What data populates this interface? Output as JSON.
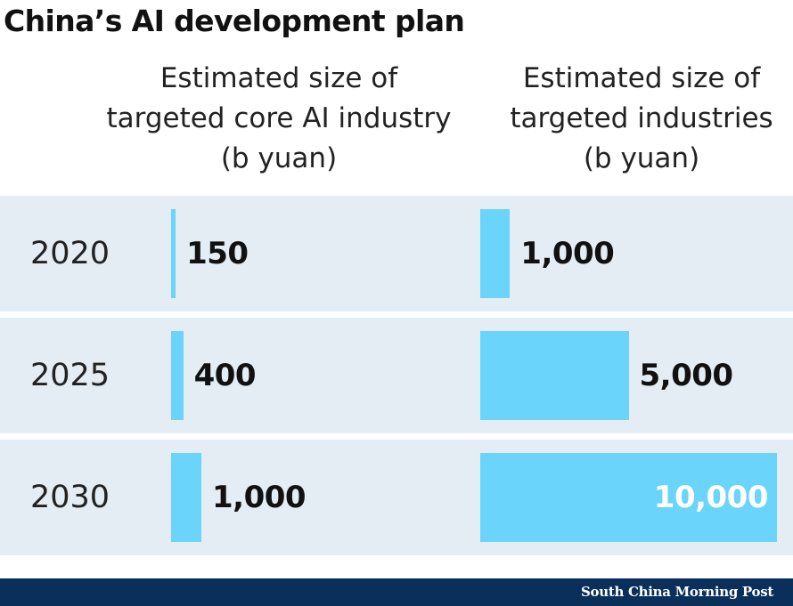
{
  "title": "China’s AI development plan",
  "colors": {
    "bar": "#6ad4fb",
    "row_bg": "#e3edf3",
    "footer_bg": "#0a2f5a"
  },
  "chart_data": {
    "type": "bar",
    "orientation": "horizontal",
    "categories": [
      "2020",
      "2025",
      "2030"
    ],
    "series": [
      {
        "name": "Estimated size of targeted core AI industry (b yuan)",
        "header_lines": [
          "Estimated size of",
          "targeted core AI industry",
          "(b yuan)"
        ],
        "values": [
          150,
          400,
          1000
        ],
        "labels": [
          "150",
          "400",
          "1,000"
        ]
      },
      {
        "name": "Estimated size of targeted industries (b yuan)",
        "header_lines": [
          "Estimated size of",
          "targeted industries",
          "(b yuan)"
        ],
        "values": [
          1000,
          5000,
          10000
        ],
        "labels": [
          "1,000",
          "5,000",
          "10,000"
        ]
      }
    ]
  },
  "footer": {
    "brand": "South China Morning Post"
  }
}
